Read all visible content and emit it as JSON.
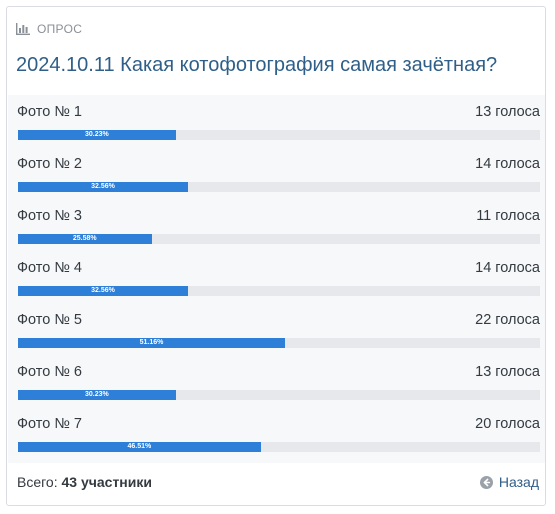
{
  "poll": {
    "header_label": "ОПРОС",
    "title": "2024.10.11 Какая котофотография самая зачётная?",
    "options": [
      {
        "label": "Фото № 1",
        "votes": "13 голоса",
        "percent": "30.23%",
        "fraction": 0.3023
      },
      {
        "label": "Фото № 2",
        "votes": "14 голоса",
        "percent": "32.56%",
        "fraction": 0.3256
      },
      {
        "label": "Фото № 3",
        "votes": "11 голоса",
        "percent": "25.58%",
        "fraction": 0.2558
      },
      {
        "label": "Фото № 4",
        "votes": "14 голоса",
        "percent": "32.56%",
        "fraction": 0.3256
      },
      {
        "label": "Фото № 5",
        "votes": "22 голоса",
        "percent": "51.16%",
        "fraction": 0.5116
      },
      {
        "label": "Фото № 6",
        "votes": "13 голоса",
        "percent": "30.23%",
        "fraction": 0.3023
      },
      {
        "label": "Фото № 7",
        "votes": "20 голоса",
        "percent": "46.51%",
        "fraction": 0.4651
      }
    ],
    "total_prefix": "Всего:",
    "total_value": "43 участники",
    "back_label": "Назад",
    "colors": {
      "title": "#2f5f89",
      "bar_fill": "#2e7fd7",
      "bar_track": "#e6e8ec",
      "header_label": "#8a9098"
    },
    "icons": {
      "header": "bar-chart-icon",
      "back": "arrow-left-circle-icon"
    }
  }
}
